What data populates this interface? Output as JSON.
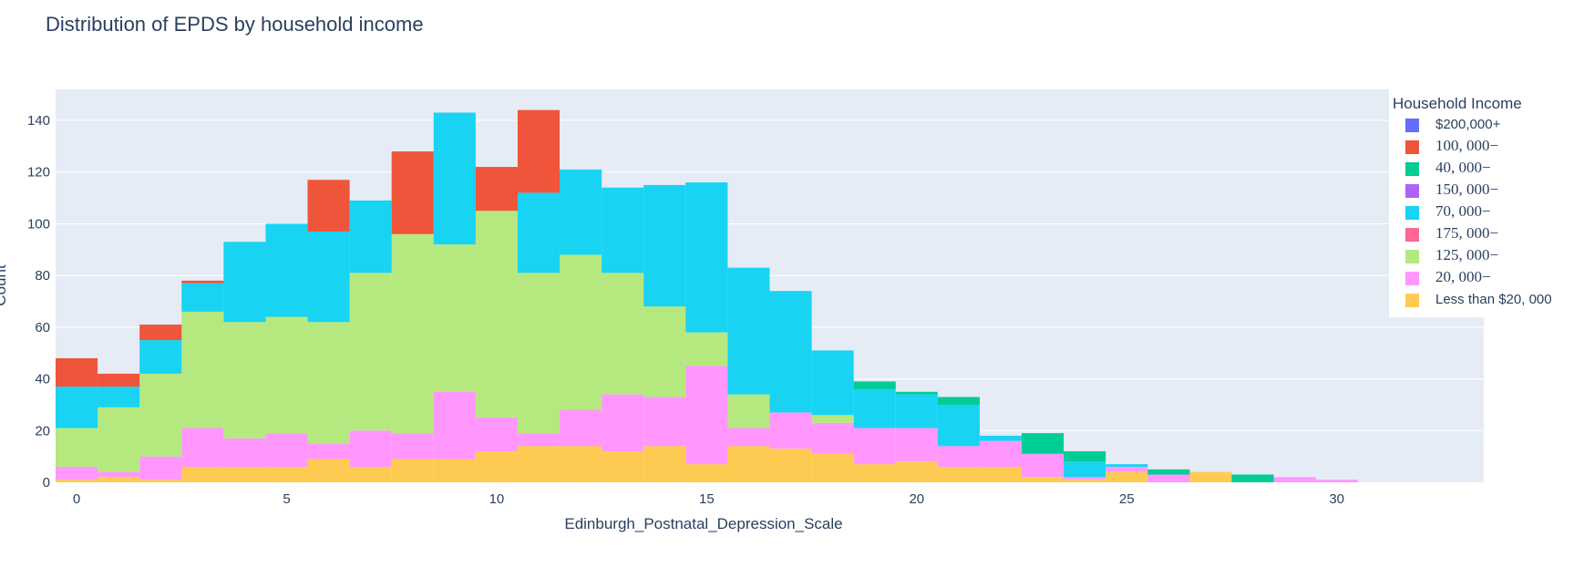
{
  "chart_data": {
    "type": "bar",
    "mode": "stacked-histogram",
    "title": "Distribution of EPDS by household income",
    "xlabel": "Edinburgh_Postnatal_Depression_Scale",
    "ylabel": "Count",
    "xlim": [
      -0.5,
      33.5
    ],
    "ylim": [
      0,
      152
    ],
    "x_ticks": [
      "0",
      "5",
      "10",
      "15",
      "20",
      "25",
      "30"
    ],
    "y_ticks": [
      "0",
      "20",
      "40",
      "60",
      "80",
      "100",
      "120",
      "140"
    ],
    "grid": true,
    "legend_title": "Household Income",
    "legend_position": "right",
    "bins": [
      0,
      1,
      2,
      3,
      4,
      5,
      6,
      7,
      8,
      9,
      10,
      11,
      12,
      13,
      14,
      15,
      16,
      17,
      18,
      19,
      20,
      21,
      22,
      23,
      24,
      25,
      26,
      27,
      28,
      29,
      30
    ],
    "series": [
      {
        "name": "Less than $20, 000",
        "color": "#FECB52",
        "legend_style": "sans",
        "values": [
          1,
          2,
          1,
          6,
          6,
          6,
          9,
          6,
          9,
          9,
          12,
          14,
          14,
          12,
          14,
          7,
          14,
          13,
          11,
          7,
          8,
          6,
          6,
          2,
          1,
          4,
          0,
          4,
          0,
          0,
          0
        ]
      },
      {
        "name": "20, 000−",
        "color": "#FF97FF",
        "legend_style": "serif",
        "values": [
          5,
          2,
          9,
          15,
          11,
          13,
          6,
          14,
          10,
          26,
          13,
          5,
          14,
          22,
          19,
          38,
          7,
          14,
          12,
          14,
          13,
          8,
          10,
          9,
          1,
          2,
          3,
          0,
          0,
          2,
          1
        ]
      },
      {
        "name": "125, 000−",
        "color": "#B6E880",
        "legend_style": "serif",
        "values": [
          15,
          25,
          32,
          45,
          45,
          45,
          47,
          61,
          77,
          57,
          80,
          62,
          60,
          47,
          35,
          13,
          13,
          0,
          3,
          0,
          0,
          0,
          0,
          0,
          0,
          0,
          0,
          0,
          0,
          0,
          0
        ]
      },
      {
        "name": "175, 000−",
        "color": "#FF6692",
        "legend_style": "serif",
        "values": [
          0,
          0,
          0,
          0,
          0,
          0,
          0,
          0,
          0,
          0,
          0,
          0,
          0,
          0,
          0,
          0,
          0,
          0,
          0,
          0,
          0,
          0,
          0,
          0,
          0,
          0,
          0,
          0,
          0,
          0,
          0
        ]
      },
      {
        "name": "70, 000−",
        "color": "#19D3F3",
        "legend_style": "serif",
        "values": [
          16,
          8,
          13,
          11,
          31,
          36,
          35,
          28,
          0,
          51,
          0,
          31,
          33,
          33,
          47,
          58,
          49,
          47,
          25,
          15,
          13,
          16,
          2,
          0,
          6,
          1,
          0,
          0,
          0,
          0,
          0
        ]
      },
      {
        "name": "150, 000−",
        "color": "#AB63FA",
        "legend_style": "serif",
        "values": [
          0,
          0,
          0,
          0,
          0,
          0,
          0,
          0,
          0,
          0,
          0,
          0,
          0,
          0,
          0,
          0,
          0,
          0,
          0,
          0,
          0,
          0,
          0,
          0,
          0,
          0,
          0,
          0,
          0,
          0,
          0
        ]
      },
      {
        "name": "40, 000−",
        "color": "#00CC96",
        "legend_style": "serif",
        "values": [
          0,
          0,
          0,
          0,
          0,
          0,
          0,
          0,
          0,
          0,
          0,
          0,
          0,
          0,
          0,
          0,
          0,
          0,
          0,
          3,
          1,
          3,
          0,
          8,
          4,
          0,
          2,
          0,
          3,
          0,
          0
        ]
      },
      {
        "name": "100, 000−",
        "color": "#EF553B",
        "legend_style": "serif",
        "values": [
          11,
          5,
          6,
          1,
          0,
          0,
          20,
          0,
          32,
          0,
          17,
          32,
          0,
          0,
          0,
          0,
          0,
          0,
          0,
          0,
          0,
          0,
          0,
          0,
          0,
          0,
          0,
          0,
          0,
          0,
          0
        ]
      },
      {
        "name": "$200,000+",
        "color": "#636EFA",
        "legend_style": "sans",
        "values": [
          0,
          0,
          0,
          0,
          0,
          0,
          0,
          0,
          0,
          0,
          0,
          0,
          0,
          0,
          0,
          0,
          0,
          0,
          0,
          0,
          0,
          0,
          0,
          0,
          0,
          0,
          0,
          0,
          0,
          0,
          0
        ]
      }
    ],
    "legend_order": [
      "$200,000+",
      "100, 000−",
      "40, 000−",
      "150, 000−",
      "70, 000−",
      "175, 000−",
      "125, 000−",
      "20, 000−",
      "Less than $20, 000"
    ]
  }
}
